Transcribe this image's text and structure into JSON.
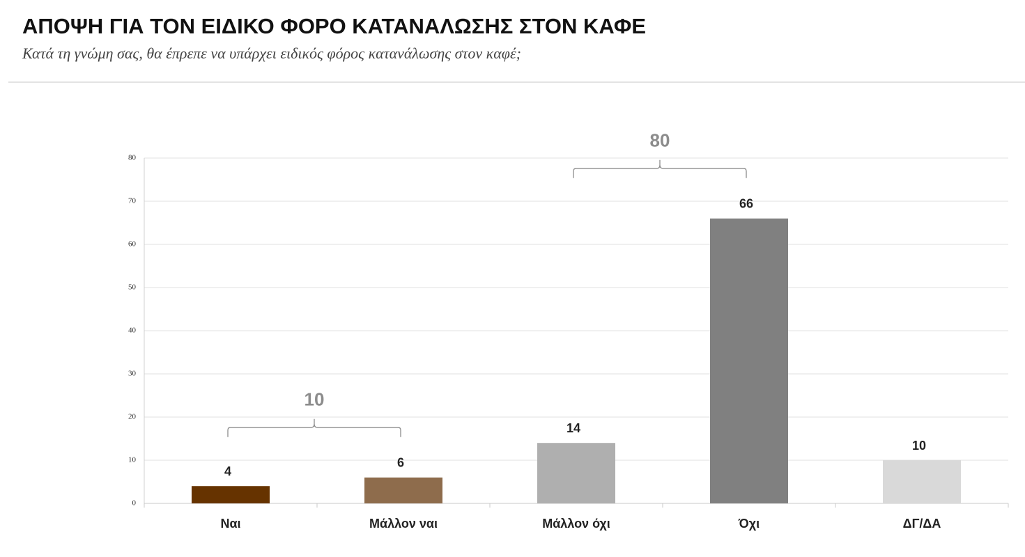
{
  "chart_data": {
    "type": "bar",
    "title": "ΑΠΟΨΗ ΓΙΑ ΤΟΝ ΕΙΔΙΚΟ ΦΟΡΟ ΚΑΤΑΝΑΛΩΣΗΣ ΣΤΟΝ ΚΑΦΕ",
    "subtitle": "Κατά τη γνώμη σας, θα έπρεπε να υπάρχει ειδικός φόρος κατανάλωσης στον καφέ;",
    "categories": [
      "Ναι",
      "Μάλλον ναι",
      "Μάλλον όχι",
      "Όχι",
      "ΔΓ/ΔΑ"
    ],
    "values": [
      4,
      6,
      14,
      66,
      10
    ],
    "colors": [
      "#663300",
      "#8e6c4c",
      "#afafaf",
      "#808080",
      "#d9d9d9"
    ],
    "ylim": [
      0,
      80
    ],
    "yticks": [
      0,
      10,
      20,
      30,
      40,
      50,
      60,
      70,
      80
    ],
    "grid": true,
    "annotations": [
      {
        "value": 10,
        "categories": [
          "Ναι",
          "Μάλλον ναι"
        ]
      },
      {
        "value": 80,
        "categories": [
          "Μάλλον όχι",
          "Όχι"
        ]
      }
    ]
  }
}
